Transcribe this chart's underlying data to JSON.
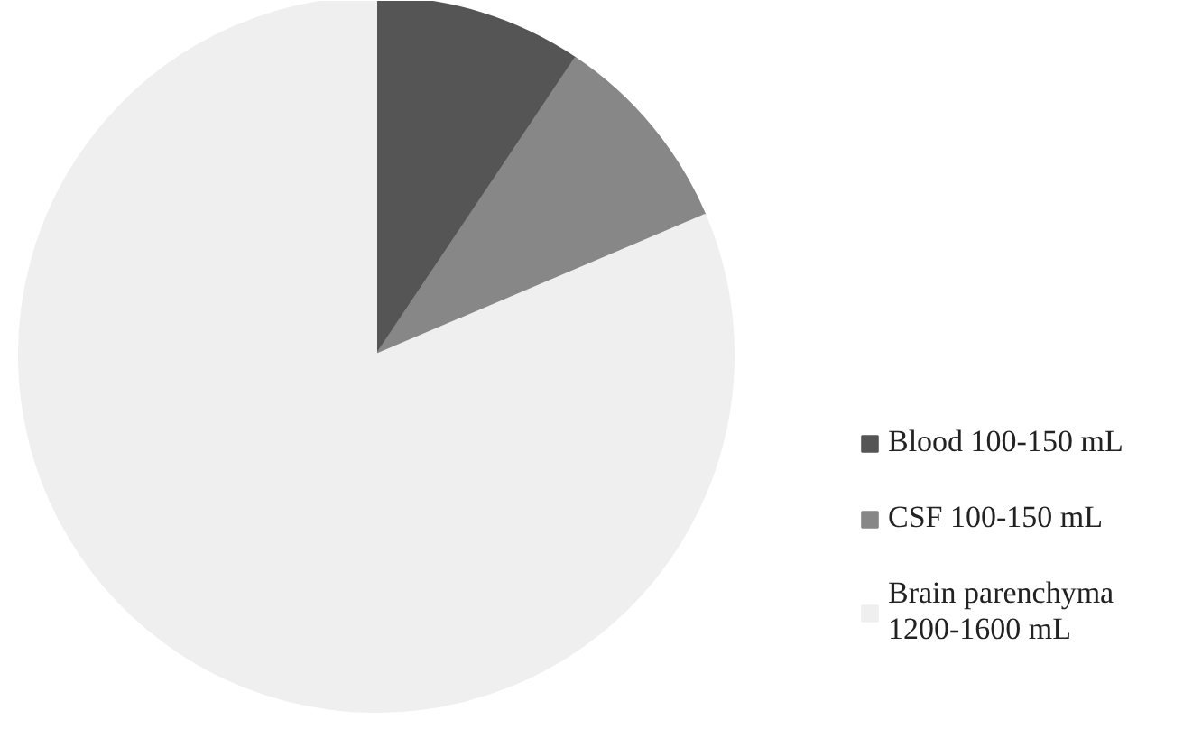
{
  "chart_data": {
    "type": "pie",
    "categories": [
      "Blood 100-150 mL",
      "CSF 100-150 mL",
      "Brain parenchyma 1200-1600 mL"
    ],
    "values": [
      9.4,
      9.2,
      81.4
    ],
    "colors": [
      "#555555",
      "#878787",
      "#efefef"
    ],
    "legend": "right"
  }
}
